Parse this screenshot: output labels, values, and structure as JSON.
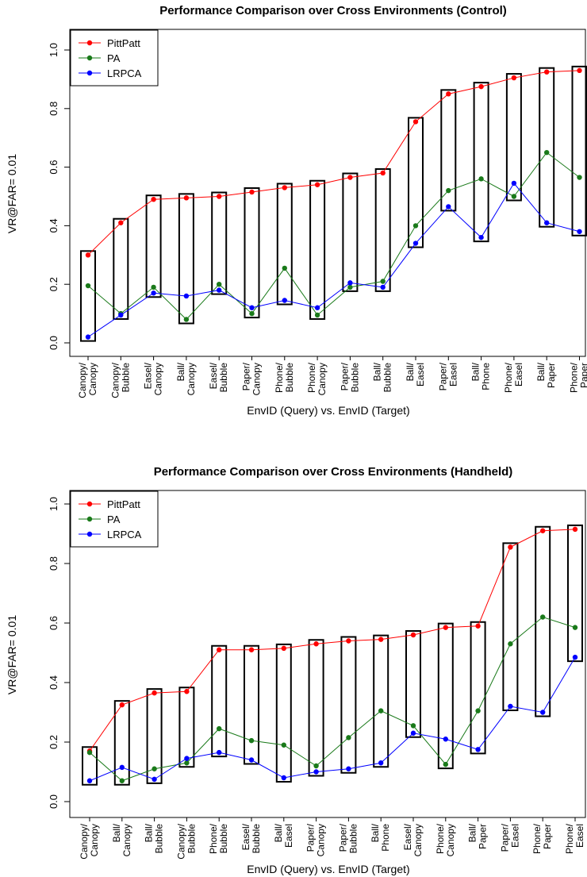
{
  "chart_data": [
    {
      "type": "line",
      "title": "Performance Comparison over Cross Environments (Control)",
      "xlabel": "EnvID (Query) vs. EnvID (Target)",
      "ylabel": "VR@FAR= 0.01",
      "ylim": [
        0.0,
        1.0
      ],
      "yticks": [
        "0.0",
        "0.2",
        "0.4",
        "0.6",
        "0.8",
        "1.0"
      ],
      "legend_position": "top-left",
      "categories": [
        [
          "Canopy/",
          "Canopy"
        ],
        [
          "Canopy/",
          "Bubble"
        ],
        [
          "Easel/",
          "Canopy"
        ],
        [
          "Ball/",
          "Canopy"
        ],
        [
          "Easel/",
          "Bubble"
        ],
        [
          "Paper/",
          "Canopy"
        ],
        [
          "Phone/",
          "Bubble"
        ],
        [
          "Phone/",
          "Canopy"
        ],
        [
          "Paper/",
          "Bubble"
        ],
        [
          "Ball/",
          "Bubble"
        ],
        [
          "Ball/",
          "Easel"
        ],
        [
          "Paper/",
          "Easel"
        ],
        [
          "Ball/",
          "Phone"
        ],
        [
          "Phone/",
          "Easel"
        ],
        [
          "Ball/",
          "Paper"
        ],
        [
          "Phone/",
          "Paper"
        ]
      ],
      "series": [
        {
          "name": "PittPatt",
          "color": "#ff0000",
          "values": [
            0.3,
            0.41,
            0.49,
            0.495,
            0.5,
            0.515,
            0.53,
            0.54,
            0.565,
            0.58,
            0.755,
            0.85,
            0.875,
            0.905,
            0.925,
            0.93
          ]
        },
        {
          "name": "PA",
          "color": "#1a7a1a",
          "values": [
            0.195,
            0.1,
            0.19,
            0.08,
            0.2,
            0.1,
            0.255,
            0.095,
            0.19,
            0.21,
            0.4,
            0.52,
            0.56,
            0.5,
            0.65,
            0.565
          ]
        },
        {
          "name": "LRPCA",
          "color": "#0000ff",
          "values": [
            0.02,
            0.095,
            0.17,
            0.16,
            0.18,
            0.12,
            0.145,
            0.12,
            0.205,
            0.19,
            0.34,
            0.465,
            0.36,
            0.545,
            0.41,
            0.38
          ]
        }
      ]
    },
    {
      "type": "line",
      "title": "Performance Comparison over Cross Environments (Handheld)",
      "xlabel": "EnvID (Query) vs. EnvID (Target)",
      "ylabel": "VR@FAR= 0.01",
      "ylim": [
        0.0,
        1.0
      ],
      "yticks": [
        "0.0",
        "0.2",
        "0.4",
        "0.6",
        "0.8",
        "1.0"
      ],
      "legend_position": "top-left",
      "categories": [
        [
          "Canopy/",
          "Canopy"
        ],
        [
          "Ball/",
          "Canopy"
        ],
        [
          "Ball/",
          "Bubble"
        ],
        [
          "Canopy/",
          "Bubble"
        ],
        [
          "Phone/",
          "Bubble"
        ],
        [
          "Easel/",
          "Bubble"
        ],
        [
          "Ball/",
          "Easel"
        ],
        [
          "Paper/",
          "Canopy"
        ],
        [
          "Paper/",
          "Bubble"
        ],
        [
          "Ball/",
          "Phone"
        ],
        [
          "Easel/",
          "Canopy"
        ],
        [
          "Phone/",
          "Canopy"
        ],
        [
          "Ball/",
          "Paper"
        ],
        [
          "Paper/",
          "Easel"
        ],
        [
          "Phone/",
          "Paper"
        ],
        [
          "Phone/",
          "Easel"
        ]
      ],
      "series": [
        {
          "name": "PittPatt",
          "color": "#ff0000",
          "values": [
            0.17,
            0.325,
            0.365,
            0.37,
            0.51,
            0.51,
            0.515,
            0.53,
            0.54,
            0.545,
            0.56,
            0.585,
            0.59,
            0.855,
            0.91,
            0.915
          ]
        },
        {
          "name": "PA",
          "color": "#1a7a1a",
          "values": [
            0.165,
            0.07,
            0.11,
            0.13,
            0.245,
            0.205,
            0.19,
            0.12,
            0.215,
            0.305,
            0.255,
            0.125,
            0.305,
            0.53,
            0.62,
            0.585
          ]
        },
        {
          "name": "LRPCA",
          "color": "#0000ff",
          "values": [
            0.07,
            0.115,
            0.075,
            0.145,
            0.165,
            0.14,
            0.08,
            0.1,
            0.11,
            0.13,
            0.23,
            0.21,
            0.175,
            0.32,
            0.3,
            0.485
          ]
        }
      ]
    }
  ]
}
